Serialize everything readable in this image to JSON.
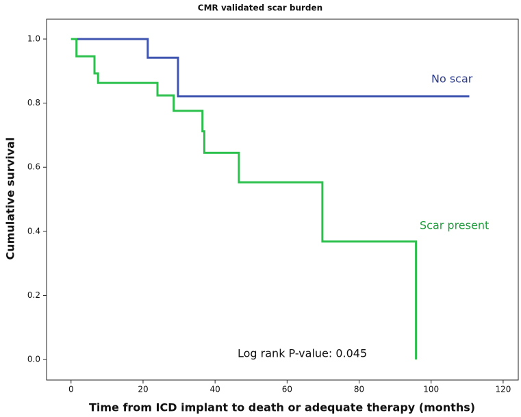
{
  "chart_data": {
    "type": "line",
    "title": "CMR validated scar burden",
    "x_label": "Time from ICD implant to death or adequate therapy (months)",
    "y_label": "Cumulative survival",
    "annotations": [
      "No scar",
      "Scar present",
      "Log rank P-value: 0.045"
    ],
    "xlim": [
      -6.8,
      124.2
    ],
    "ylim": [
      -0.064,
      1.062
    ],
    "xticks": [
      0,
      20,
      40,
      60,
      80,
      100,
      120
    ],
    "yticks": [
      {
        "value": 0,
        "label": "0.0"
      },
      0.2,
      0.4,
      0.6,
      0.8,
      {
        "value": 1,
        "label": "1.0"
      }
    ],
    "series": [
      {
        "name": "No scar",
        "color": "#3f55b0",
        "x": [
          0,
          21.3,
          21.3,
          29.7,
          29.7,
          110.6
        ],
        "values": [
          1,
          1,
          0.942,
          0.942,
          0.821,
          0.821
        ]
      },
      {
        "name": "Scar present",
        "color": "#2bc04c",
        "x": [
          0,
          1.5,
          1.5,
          6.5,
          6.5,
          7.5,
          7.5,
          24,
          24,
          28.5,
          28.5,
          36.5,
          36.5,
          37,
          37,
          46.6,
          46.6,
          69.8,
          69.8,
          95.8,
          95.8
        ],
        "values": [
          1,
          1,
          0.946,
          0.946,
          0.893,
          0.893,
          0.863,
          0.863,
          0.824,
          0.824,
          0.776,
          0.776,
          0.712,
          0.712,
          0.645,
          0.645,
          0.553,
          0.553,
          0.368,
          0.368,
          0
        ]
      }
    ]
  }
}
